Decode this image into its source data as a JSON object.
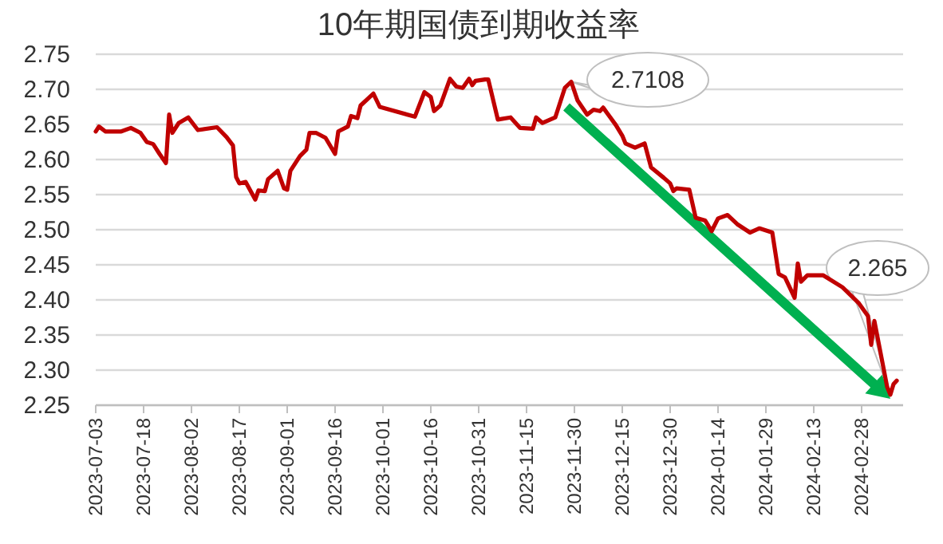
{
  "chart_data": {
    "type": "line",
    "title": "10年期国债到期收益率",
    "x": [
      "2023-07-03",
      "2023-07-04",
      "2023-07-06",
      "2023-07-11",
      "2023-07-14",
      "2023-07-17",
      "2023-07-19",
      "2023-07-21",
      "2023-07-23",
      "2023-07-25",
      "2023-07-26",
      "2023-07-27",
      "2023-07-29",
      "2023-08-01",
      "2023-08-04",
      "2023-08-10",
      "2023-08-13",
      "2023-08-15",
      "2023-08-16",
      "2023-08-17",
      "2023-08-19",
      "2023-08-22",
      "2023-08-23",
      "2023-08-25",
      "2023-08-26",
      "2023-08-29",
      "2023-08-31",
      "2023-09-01",
      "2023-09-02",
      "2023-09-05",
      "2023-09-07",
      "2023-09-08",
      "2023-09-10",
      "2023-09-13",
      "2023-09-16",
      "2023-09-17",
      "2023-09-20",
      "2023-09-21",
      "2023-09-23",
      "2023-09-24",
      "2023-09-28",
      "2023-09-30",
      "2023-10-11",
      "2023-10-14",
      "2023-10-16",
      "2023-10-17",
      "2023-10-19",
      "2023-10-22",
      "2023-10-24",
      "2023-10-26",
      "2023-10-28",
      "2023-10-29",
      "2023-10-30",
      "2023-11-02",
      "2023-11-03",
      "2023-11-06",
      "2023-11-10",
      "2023-11-13",
      "2023-11-17",
      "2023-11-18",
      "2023-11-20",
      "2023-11-24",
      "2023-11-27",
      "2023-11-29",
      "2023-12-01",
      "2023-12-04",
      "2023-12-06",
      "2023-12-08",
      "2023-12-09",
      "2023-12-13",
      "2023-12-15",
      "2023-12-16",
      "2023-12-19",
      "2023-12-22",
      "2023-12-24",
      "2023-12-28",
      "2023-12-30",
      "2023-12-31",
      "2024-01-01",
      "2024-01-05",
      "2024-01-07",
      "2024-01-10",
      "2024-01-12",
      "2024-01-14",
      "2024-01-17",
      "2024-01-20",
      "2024-01-24",
      "2024-01-27",
      "2024-01-31",
      "2024-02-02",
      "2024-02-04",
      "2024-02-07",
      "2024-02-08",
      "2024-02-09",
      "2024-02-11",
      "2024-02-16",
      "2024-02-22",
      "2024-02-27",
      "2024-03-01",
      "2024-03-02",
      "2024-03-03",
      "2024-03-07",
      "2024-03-08",
      "2024-03-09",
      "2024-03-10"
    ],
    "series": [
      {
        "color": "#c00000",
        "values": [
          2.64,
          2.647,
          2.64,
          2.64,
          2.645,
          2.638,
          2.625,
          2.622,
          2.608,
          2.595,
          2.664,
          2.638,
          2.652,
          2.66,
          2.642,
          2.646,
          2.632,
          2.62,
          2.575,
          2.566,
          2.568,
          2.543,
          2.556,
          2.555,
          2.572,
          2.584,
          2.559,
          2.557,
          2.584,
          2.605,
          2.614,
          2.638,
          2.638,
          2.631,
          2.608,
          2.64,
          2.647,
          2.662,
          2.659,
          2.677,
          2.694,
          2.675,
          2.661,
          2.696,
          2.689,
          2.669,
          2.677,
          2.715,
          2.704,
          2.702,
          2.715,
          2.706,
          2.712,
          2.714,
          2.714,
          2.657,
          2.66,
          2.645,
          2.644,
          2.66,
          2.652,
          2.66,
          2.702,
          2.7108,
          2.684,
          2.664,
          2.671,
          2.669,
          2.674,
          2.649,
          2.634,
          2.623,
          2.617,
          2.623,
          2.589,
          2.574,
          2.566,
          2.555,
          2.559,
          2.557,
          2.517,
          2.513,
          2.498,
          2.516,
          2.521,
          2.508,
          2.496,
          2.502,
          2.496,
          2.437,
          2.432,
          2.403,
          2.452,
          2.426,
          2.435,
          2.435,
          2.418,
          2.396,
          2.377,
          2.336,
          2.37,
          2.276,
          2.265,
          2.28,
          2.285
        ]
      }
    ],
    "xlim": [
      "2023-07-03",
      "2024-03-12"
    ],
    "xticks": [
      "2023-07-03",
      "2023-07-18",
      "2023-08-02",
      "2023-08-17",
      "2023-09-01",
      "2023-09-16",
      "2023-10-01",
      "2023-10-16",
      "2023-10-31",
      "2023-11-15",
      "2023-11-30",
      "2023-12-15",
      "2023-12-30",
      "2024-01-14",
      "2024-01-29",
      "2024-02-13",
      "2024-02-28"
    ],
    "ylim": [
      2.25,
      2.75
    ],
    "yticks": [
      {
        "value": 2.25,
        "label": "2.25"
      },
      {
        "value": 2.3,
        "label": "2.30"
      },
      {
        "value": 2.35,
        "label": "2.35"
      },
      {
        "value": 2.4,
        "label": "2.40"
      },
      {
        "value": 2.45,
        "label": "2.45"
      },
      {
        "value": 2.5,
        "label": "2.50"
      },
      {
        "value": 2.55,
        "label": "2.55"
      },
      {
        "value": 2.6,
        "label": "2.60"
      },
      {
        "value": 2.65,
        "label": "2.65"
      },
      {
        "value": 2.7,
        "label": "2.70"
      },
      {
        "value": 2.75,
        "label": "2.75"
      }
    ],
    "grid": "y",
    "marker": "none",
    "line_style": "solid",
    "annotations": [
      {
        "text": "2.7108",
        "x": "2023-11-29",
        "y": 2.7108
      },
      {
        "text": "2.265",
        "x": "2024-03-08",
        "y": 2.265
      }
    ]
  }
}
